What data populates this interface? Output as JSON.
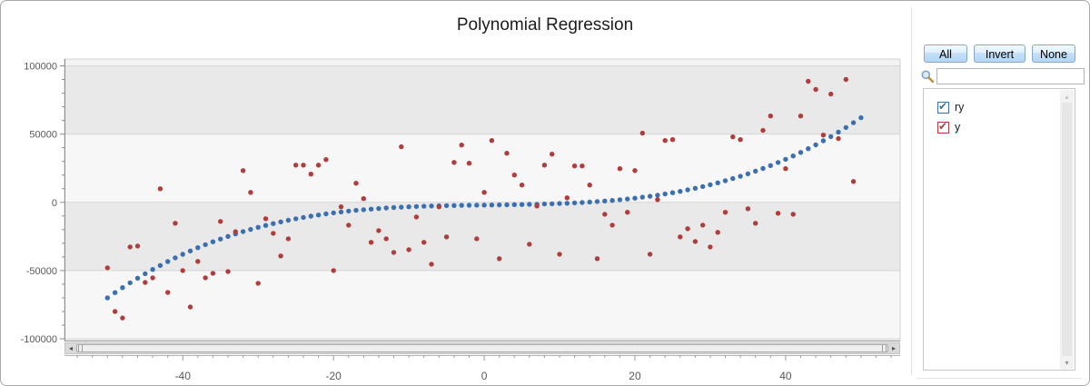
{
  "window": {
    "title": "Polynomial Regression"
  },
  "panel": {
    "buttons": {
      "all": "All",
      "invert": "Invert",
      "none": "None"
    },
    "search": {
      "value": "",
      "placeholder": ""
    },
    "series_list": [
      {
        "label": "ry",
        "checked": true,
        "color": "#3c6fb0"
      },
      {
        "label": "y",
        "checked": true,
        "color": "#b03d3d"
      }
    ]
  },
  "chart_data": {
    "type": "scatter",
    "title": "Polynomial Regression",
    "xlabel": "",
    "ylabel": "",
    "xlim": [
      -55.7,
      55.2
    ],
    "ylim": [
      -101300,
      105000
    ],
    "x_ticks": [
      -40,
      -20,
      0,
      20,
      40
    ],
    "x_minor_step": 2,
    "x_minor_range": [
      -54,
      54
    ],
    "y_ticks": [
      100000,
      50000,
      0,
      -50000,
      -100000
    ],
    "y_minor_step": 10000,
    "grid": "horizontal-bands",
    "legend_position": "right-panel",
    "series": [
      {
        "name": "ry",
        "color": "#3c6fb0",
        "marker": "circle",
        "x": [
          -50,
          -49,
          -48,
          -47,
          -46,
          -45,
          -44,
          -43,
          -42,
          -41,
          -40,
          -39,
          -38,
          -37,
          -36,
          -35,
          -34,
          -33,
          -32,
          -31,
          -30,
          -29,
          -28,
          -27,
          -26,
          -25,
          -24,
          -23,
          -22,
          -21,
          -20,
          -19,
          -18,
          -17,
          -16,
          -15,
          -14,
          -13,
          -12,
          -11,
          -10,
          -9,
          -8,
          -7,
          -6,
          -5,
          -4,
          -3,
          -2,
          -1,
          0,
          1,
          2,
          3,
          4,
          5,
          6,
          7,
          8,
          9,
          10,
          11,
          12,
          13,
          14,
          15,
          16,
          17,
          18,
          19,
          20,
          21,
          22,
          23,
          24,
          25,
          26,
          27,
          28,
          29,
          30,
          31,
          32,
          33,
          34,
          35,
          36,
          37,
          38,
          39,
          40,
          41,
          42,
          43,
          44,
          45,
          46,
          47,
          48,
          49,
          50
        ],
        "y": [
          -70000,
          -66175,
          -62499,
          -58969,
          -55581,
          -52333,
          -49221,
          -46243,
          -43395,
          -40675,
          -38080,
          -35606,
          -33251,
          -31012,
          -28885,
          -26868,
          -24957,
          -23150,
          -21443,
          -19834,
          -18320,
          -16897,
          -15563,
          -14315,
          -13149,
          -12063,
          -11053,
          -10117,
          -9251,
          -8453,
          -7720,
          -7048,
          -6435,
          -5878,
          -5373,
          -4918,
          -4509,
          -4144,
          -3819,
          -3532,
          -3280,
          -3059,
          -2867,
          -2701,
          -2557,
          -2433,
          -2325,
          -2231,
          -2147,
          -2071,
          -2000,
          -1930,
          -1859,
          -1784,
          -1701,
          -1608,
          -1501,
          -1378,
          -1235,
          -1070,
          -880,
          -661,
          -411,
          -127,
          195,
          558,
          963,
          1415,
          1917,
          2471,
          3080,
          3748,
          4477,
          5270,
          6131,
          7063,
          8067,
          9148,
          10309,
          11552,
          12880,
          14297,
          15805,
          17407,
          19107,
          20908,
          22811,
          24821,
          26941,
          29173,
          31520,
          33986,
          36573,
          39284,
          42123,
          45093,
          48195,
          51434,
          54813,
          58334,
          62000
        ]
      },
      {
        "name": "y",
        "color": "#b03d3d",
        "marker": "circle",
        "x": [
          -50,
          -49,
          -48,
          -47,
          -46,
          -45,
          -44,
          -43,
          -42,
          -41,
          -40,
          -39,
          -38,
          -37,
          -36,
          -35,
          -34,
          -33,
          -32,
          -31,
          -30,
          -29,
          -28,
          -27,
          -26,
          -25,
          -24,
          -23,
          -22,
          -21,
          -20,
          -19,
          -18,
          -17,
          -16,
          -15,
          -14,
          -13,
          -12,
          -11,
          -10,
          -9,
          -8,
          -7,
          -6,
          -5,
          -4,
          -3,
          -2,
          -1,
          0,
          1,
          2,
          3,
          4,
          5,
          6,
          7,
          8,
          9,
          10,
          11,
          12,
          13,
          14,
          15,
          16,
          17,
          18,
          19,
          20,
          21,
          22,
          23,
          24,
          25,
          26,
          27,
          28,
          29,
          30,
          31,
          32,
          33,
          34,
          35,
          36,
          37,
          38,
          39,
          40,
          41,
          42,
          43,
          44,
          45,
          46,
          47,
          48,
          49
        ],
        "y": [
          -48000,
          -80000,
          -84700,
          -32700,
          -32000,
          -58700,
          -55300,
          10000,
          -66000,
          -15300,
          -50000,
          -76700,
          -43300,
          -55300,
          -52000,
          -14000,
          -50700,
          -21500,
          23300,
          7300,
          -59300,
          -12000,
          -22700,
          -39300,
          -26700,
          27300,
          27300,
          20700,
          27300,
          31300,
          -50000,
          -3300,
          -16700,
          14000,
          2700,
          -29300,
          -20700,
          -26700,
          -36700,
          40700,
          -34700,
          -10700,
          -29300,
          -45300,
          -3300,
          -25300,
          29300,
          42000,
          28700,
          -26700,
          7300,
          45300,
          -41300,
          36000,
          20000,
          12700,
          -30700,
          -2700,
          27300,
          35300,
          -38000,
          3300,
          26700,
          26700,
          12700,
          -41300,
          -8700,
          -16700,
          24700,
          -7300,
          23300,
          50700,
          -38000,
          2000,
          45300,
          46000,
          -25300,
          -19300,
          -28700,
          -16700,
          -32700,
          -22000,
          -7300,
          48000,
          46000,
          -4700,
          -15300,
          52700,
          63300,
          -8000,
          24700,
          -8700,
          63300,
          88700,
          82700,
          49300,
          79300,
          46700,
          90000,
          15300
        ]
      }
    ]
  }
}
